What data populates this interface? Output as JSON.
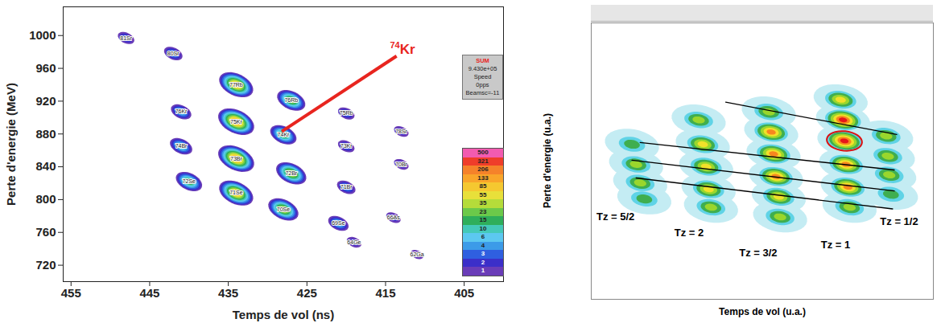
{
  "chart_data": [
    {
      "type": "contour",
      "xlabel": "Temps de vol (ns)",
      "ylabel": "Perte d'energie (MeV)",
      "xlim": [
        456,
        400
      ],
      "ylim": [
        700,
        1035
      ],
      "xticks": [
        455,
        445,
        435,
        425,
        415,
        405
      ],
      "yticks": [
        720,
        760,
        800,
        840,
        880,
        920,
        960,
        1000
      ],
      "labels": [
        "81Sr",
        "80Sr",
        "77Rb",
        "76Rb",
        "75Rb",
        "76Kr",
        "75Kr",
        "74Kr",
        "73Kr",
        "78Sr",
        "74Br",
        "73Br",
        "72Br",
        "71Br",
        "70Br",
        "72Se",
        "71Se",
        "70Se",
        "69Se",
        "66As",
        "64Ge",
        "62Ga"
      ],
      "x": [
        448,
        442,
        434,
        427,
        420,
        441,
        434,
        428,
        420,
        413,
        441,
        434,
        427,
        420,
        413,
        440,
        434,
        428,
        421,
        414,
        419,
        411
      ],
      "y": [
        997,
        978,
        940,
        921,
        905,
        907,
        895,
        879,
        865,
        883,
        865,
        850,
        832,
        815,
        843,
        822,
        808,
        788,
        771,
        778,
        748,
        733
      ],
      "counts": [
        4,
        6,
        206,
        55,
        4,
        10,
        321,
        35,
        4,
        3,
        15,
        321,
        85,
        6,
        3,
        35,
        206,
        85,
        10,
        3,
        3,
        2
      ],
      "colorbar": {
        "ticks": [
          1,
          2,
          3,
          4,
          6,
          10,
          15,
          23,
          35,
          55,
          85,
          133,
          206,
          321,
          500
        ],
        "colors": [
          "#6a3db8",
          "#3b2fc9",
          "#2f5fe0",
          "#3c9be8",
          "#5cc8f0",
          "#44c9b8",
          "#2fae5a",
          "#6cc94a",
          "#b5dc3a",
          "#e8e03a",
          "#f5c830",
          "#f9a52a",
          "#f5822a",
          "#ef3d2a",
          "#f25bb0"
        ]
      },
      "stats_box": [
        "SUM",
        "9.430e+05",
        "Speed",
        "0pps",
        "Beamsc=-11"
      ],
      "annotation": {
        "text": "74Kr",
        "x": 428.2,
        "y": 883,
        "x_end": 413.6,
        "y_end": 975,
        "text_x": 412.8,
        "text_y": 987,
        "color": "#e8251f"
      }
    },
    {
      "type": "heatmap",
      "xlabel": "Temps de vol (u.a.)",
      "ylabel": "Perte d'energie (u.a.)",
      "tick_labels": false,
      "xlim": [
        0,
        100
      ],
      "ylim": [
        0,
        100
      ],
      "intensity_levels": [
        1,
        2,
        3,
        4,
        5,
        6
      ],
      "colors": [
        "#5fd3e6",
        "#3fae4f",
        "#9ad62c",
        "#f2e02a",
        "#f7861f",
        "#e5161a"
      ],
      "series": [
        {
          "name": "Tz = 5/2",
          "label_x": 7.1,
          "label_y": 29.8,
          "x": [
            11.9,
            13.1,
            14.3,
            15.5
          ],
          "y": [
            56.1,
            48.8,
            42.1,
            36.3
          ],
          "values": [
            2,
            3,
            3,
            2
          ]
        },
        {
          "name": "Tz = 2",
          "label_x": 28.6,
          "label_y": 24.0,
          "x": [
            31.4,
            32.6,
            33.6,
            34.3,
            35.0
          ],
          "y": [
            64.9,
            56.1,
            48.0,
            39.8,
            33.3
          ],
          "values": [
            3,
            4,
            4,
            4,
            3
          ]
        },
        {
          "name": "Tz = 3/2",
          "label_x": 48.8,
          "label_y": 16.7,
          "x": [
            51.9,
            52.6,
            53.3,
            54.0,
            54.8,
            55.2
          ],
          "y": [
            67.8,
            60.5,
            52.6,
            44.4,
            37.1,
            29.8
          ],
          "values": [
            3,
            5,
            5,
            5,
            4,
            3
          ]
        },
        {
          "name": "Tz = 1",
          "label_x": 71.4,
          "label_y": 19.6,
          "x": [
            72.9,
            73.6,
            74.0,
            74.5,
            75.0,
            75.5
          ],
          "y": [
            72.2,
            64.9,
            57.3,
            48.8,
            40.6,
            33.3
          ],
          "values": [
            4,
            6,
            6,
            5,
            5,
            3
          ]
        },
        {
          "name": "Tz = 1/2",
          "label_x": 90.0,
          "label_y": 28.1,
          "x": [
            86.2,
            86.7,
            87.1,
            87.6
          ],
          "y": [
            59.1,
            51.8,
            45.0,
            38.0
          ],
          "values": [
            3,
            3,
            3,
            2
          ]
        }
      ],
      "lines": [
        {
          "x": [
            39.3,
            89.3
          ],
          "y": [
            71.3,
            59.6
          ]
        },
        {
          "x": [
            14.3,
            88.6
          ],
          "y": [
            56.7,
            46.8
          ]
        },
        {
          "x": [
            11.9,
            88.6
          ],
          "y": [
            50.3,
            39.2
          ]
        },
        {
          "x": [
            13.1,
            88.1
          ],
          "y": [
            43.9,
            32.7
          ]
        }
      ],
      "highlight": {
        "x": 74.0,
        "y": 57.3,
        "color": "#e01010"
      }
    }
  ]
}
